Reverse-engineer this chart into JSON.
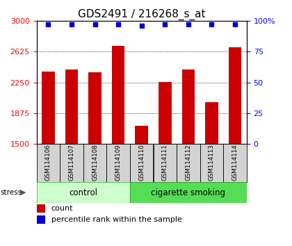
{
  "title": "GDS2491 / 216268_s_at",
  "samples": [
    "GSM114106",
    "GSM114107",
    "GSM114108",
    "GSM114109",
    "GSM114110",
    "GSM114111",
    "GSM114112",
    "GSM114113",
    "GSM114114"
  ],
  "counts": [
    2380,
    2410,
    2375,
    2695,
    1720,
    2255,
    2405,
    2010,
    2680
  ],
  "percentiles": [
    97,
    97,
    97,
    97,
    96,
    97,
    97,
    97,
    97
  ],
  "ylim_left": [
    1500,
    3000
  ],
  "ylim_right": [
    0,
    100
  ],
  "yticks_left": [
    1500,
    1875,
    2250,
    2625,
    3000
  ],
  "yticks_right": [
    0,
    25,
    50,
    75,
    100
  ],
  "bar_color": "#cc0000",
  "dot_color": "#0000cc",
  "control_light": "#ccffcc",
  "smoking_dark": "#55dd55",
  "title_fontsize": 11,
  "tick_fontsize": 8,
  "label_fontsize": 8
}
